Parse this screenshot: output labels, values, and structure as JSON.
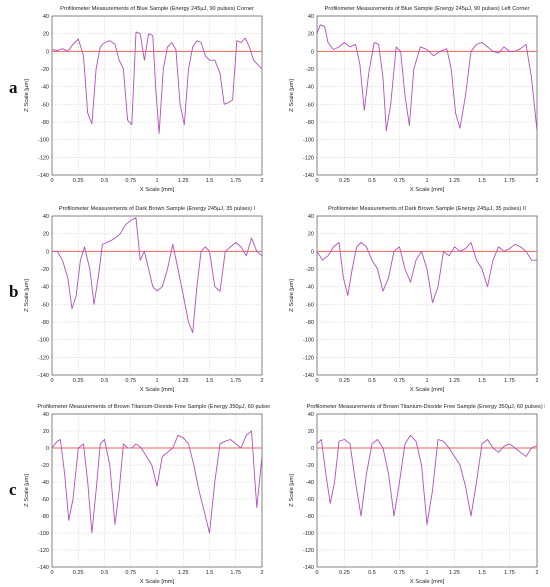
{
  "figure": {
    "row_labels": [
      "a",
      "b",
      "c"
    ]
  },
  "colors": {
    "profile_line": "#b24fbd",
    "zero_line": "#e8645a",
    "grid": "#c9c9c9",
    "axis": "#555555",
    "text": "#222222"
  },
  "chart_data": [
    {
      "type": "line",
      "title": "Profilometer Measurements of Blue Sample (Energy 245µJ, 90 pulses) Corner",
      "xlabel": "X Scale [mm]",
      "ylabel": "Z Scale [µm]",
      "xlim": [
        0,
        2
      ],
      "ylim": [
        -140,
        40
      ],
      "xticks": [
        0,
        0.25,
        0.5,
        0.75,
        1,
        1.25,
        1.5,
        1.75,
        2
      ],
      "xtick_labels": [
        "0",
        "0.25",
        "0.5",
        "0.75",
        "1",
        "1.25",
        "1.5",
        "1.75",
        "2"
      ],
      "yticks": [
        40,
        20,
        0,
        -20,
        -40,
        -60,
        -80,
        -100,
        -120,
        -140
      ],
      "ytick_labels": [
        "40",
        "20",
        "0",
        "-20",
        "-40",
        "-60",
        "-80",
        "-100",
        "-120",
        "-140"
      ],
      "grid": true,
      "reference_line_y": 0,
      "series": [
        {
          "x": [
            0,
            0.05,
            0.1,
            0.15,
            0.2,
            0.25,
            0.3,
            0.34,
            0.38,
            0.42,
            0.46,
            0.5,
            0.55,
            0.6,
            0.64,
            0.68,
            0.72,
            0.76,
            0.8,
            0.84,
            0.88,
            0.92,
            0.96,
            0.99,
            1.02,
            1.06,
            1.1,
            1.14,
            1.18,
            1.22,
            1.26,
            1.3,
            1.34,
            1.38,
            1.42,
            1.46,
            1.5,
            1.55,
            1.6,
            1.64,
            1.68,
            1.72,
            1.76,
            1.8,
            1.84,
            1.88,
            1.92,
            1.96,
            2
          ],
          "y": [
            2,
            1,
            3,
            0,
            8,
            14,
            -5,
            -70,
            -82,
            -20,
            5,
            10,
            12,
            8,
            -10,
            -20,
            -78,
            -83,
            22,
            20,
            -10,
            20,
            18,
            -45,
            -93,
            -20,
            5,
            10,
            2,
            -60,
            -83,
            -20,
            5,
            12,
            10,
            -5,
            -10,
            -10,
            -25,
            -60,
            -58,
            -55,
            12,
            10,
            15,
            5,
            -10,
            -15,
            -20
          ]
        }
      ]
    },
    {
      "type": "line",
      "title": "Profilometer Measurements of Blue Sample (Energy 245µJ, 90 pulses) Left Corner",
      "xlabel": "X Scale [mm]",
      "ylabel": "Z Scale [µm]",
      "xlim": [
        0,
        2
      ],
      "ylim": [
        -140,
        40
      ],
      "xticks": [
        0,
        0.25,
        0.5,
        0.75,
        1,
        1.25,
        1.5,
        1.75,
        2
      ],
      "xtick_labels": [
        "0",
        "0.25",
        "0.5",
        "0.75",
        "1",
        "1.25",
        "1.5",
        "1.75",
        "2"
      ],
      "yticks": [
        40,
        20,
        0,
        -20,
        -40,
        -60,
        -80,
        -100,
        -120,
        -140
      ],
      "ytick_labels": [
        "40",
        "20",
        "0",
        "-20",
        "-40",
        "-60",
        "-80",
        "-100",
        "-120",
        "-140"
      ],
      "grid": true,
      "reference_line_y": 0,
      "series": [
        {
          "x": [
            0,
            0.03,
            0.07,
            0.1,
            0.15,
            0.2,
            0.25,
            0.3,
            0.35,
            0.39,
            0.43,
            0.47,
            0.52,
            0.56,
            0.6,
            0.63,
            0.67,
            0.72,
            0.76,
            0.8,
            0.84,
            0.88,
            0.94,
            1,
            1.06,
            1.12,
            1.18,
            1.22,
            1.26,
            1.3,
            1.35,
            1.4,
            1.45,
            1.5,
            1.55,
            1.6,
            1.65,
            1.7,
            1.75,
            1.8,
            1.85,
            1.9,
            1.95,
            2
          ],
          "y": [
            20,
            30,
            28,
            10,
            2,
            5,
            10,
            5,
            8,
            -15,
            -67,
            -25,
            10,
            8,
            -30,
            -90,
            -60,
            5,
            0,
            -50,
            -84,
            -20,
            5,
            2,
            -5,
            0,
            3,
            -20,
            -70,
            -87,
            -50,
            0,
            8,
            10,
            5,
            0,
            -2,
            5,
            0,
            0,
            3,
            8,
            -30,
            -90
          ]
        }
      ]
    },
    {
      "type": "line",
      "title": "Profilometer Measurements of Dark Brown Sample (Energy 245µJ, 35 pulses) I",
      "xlabel": "X Scale [mm]",
      "ylabel": "Z Scale [µm]",
      "xlim": [
        0,
        2
      ],
      "ylim": [
        -140,
        40
      ],
      "xticks": [
        0,
        0.25,
        0.5,
        0.75,
        1,
        1.25,
        1.5,
        1.75,
        2
      ],
      "xtick_labels": [
        "0",
        "0.25",
        "0.5",
        "0.75",
        "1",
        "1.25",
        "1.5",
        "1.75",
        "2"
      ],
      "yticks": [
        40,
        20,
        0,
        -20,
        -40,
        -60,
        -80,
        -100,
        -120,
        -140
      ],
      "ytick_labels": [
        "40",
        "20",
        "0",
        "-20",
        "-40",
        "-60",
        "-80",
        "-100",
        "-120",
        "-140"
      ],
      "grid": true,
      "reference_line_y": 0,
      "series": [
        {
          "x": [
            0,
            0.05,
            0.1,
            0.15,
            0.19,
            0.23,
            0.27,
            0.31,
            0.36,
            0.4,
            0.44,
            0.48,
            0.52,
            0.56,
            0.6,
            0.65,
            0.7,
            0.75,
            0.8,
            0.84,
            0.88,
            0.92,
            0.96,
            1,
            1.05,
            1.1,
            1.15,
            1.2,
            1.25,
            1.3,
            1.34,
            1.38,
            1.42,
            1.46,
            1.5,
            1.55,
            1.6,
            1.65,
            1.7,
            1.75,
            1.8,
            1.85,
            1.9,
            1.95,
            2
          ],
          "y": [
            0,
            0,
            -10,
            -30,
            -65,
            -50,
            -10,
            5,
            -20,
            -60,
            -30,
            8,
            10,
            12,
            15,
            20,
            30,
            35,
            38,
            -10,
            0,
            -20,
            -40,
            -45,
            -40,
            -20,
            8,
            -20,
            -50,
            -80,
            -92,
            -40,
            0,
            5,
            0,
            -40,
            -45,
            0,
            5,
            10,
            5,
            -5,
            15,
            0,
            -5
          ]
        }
      ]
    },
    {
      "type": "line",
      "title": "Profilometer Measurements of Dark Brown Sample (Energy 245µJ, 35 pulses) II",
      "xlabel": "X Scale [mm]",
      "ylabel": "Z Scale [µm]",
      "xlim": [
        0,
        2
      ],
      "ylim": [
        -140,
        40
      ],
      "xticks": [
        0,
        0.25,
        0.5,
        0.75,
        1,
        1.25,
        1.5,
        1.75,
        2
      ],
      "xtick_labels": [
        "0",
        "0.25",
        "0.5",
        "0.75",
        "1",
        "1.25",
        "1.5",
        "1.75",
        "2"
      ],
      "yticks": [
        40,
        20,
        0,
        -20,
        -40,
        -60,
        -80,
        -100,
        -120,
        -140
      ],
      "ytick_labels": [
        "40",
        "20",
        "0",
        "-20",
        "-40",
        "-60",
        "-80",
        "-100",
        "-120",
        "-140"
      ],
      "grid": true,
      "reference_line_y": 0,
      "series": [
        {
          "x": [
            0,
            0.05,
            0.1,
            0.15,
            0.2,
            0.24,
            0.28,
            0.32,
            0.36,
            0.4,
            0.45,
            0.5,
            0.55,
            0.6,
            0.65,
            0.7,
            0.75,
            0.8,
            0.85,
            0.9,
            0.95,
            1,
            1.05,
            1.1,
            1.15,
            1.2,
            1.25,
            1.3,
            1.35,
            1.4,
            1.45,
            1.5,
            1.55,
            1.6,
            1.65,
            1.7,
            1.75,
            1.8,
            1.85,
            1.9,
            1.95,
            2
          ],
          "y": [
            0,
            -10,
            -5,
            5,
            10,
            -30,
            -50,
            -20,
            5,
            10,
            5,
            -10,
            -20,
            -45,
            -30,
            0,
            5,
            -20,
            -35,
            -10,
            0,
            -20,
            -58,
            -40,
            0,
            -5,
            5,
            0,
            3,
            10,
            -10,
            -20,
            -40,
            -10,
            5,
            0,
            3,
            8,
            5,
            0,
            -10,
            -10
          ]
        }
      ]
    },
    {
      "type": "line",
      "title": "Profilometer Measurements of Brown Titanium-Dioxide Free Sample (Energy 350µJ, 60 pulses) I",
      "xlabel": "X Scale [mm]",
      "ylabel": "Z Scale [µm]",
      "xlim": [
        0,
        2
      ],
      "ylim": [
        -140,
        40
      ],
      "xticks": [
        0,
        0.25,
        0.5,
        0.75,
        1,
        1.25,
        1.5,
        1.75,
        2
      ],
      "xtick_labels": [
        "0",
        "0.25",
        "0.5",
        "0.75",
        "1",
        "1.25",
        "1.5",
        "1.75",
        "2"
      ],
      "yticks": [
        40,
        20,
        0,
        -20,
        -40,
        -60,
        -80,
        -100,
        -120,
        -140
      ],
      "ytick_labels": [
        "40",
        "20",
        "0",
        "-20",
        "-40",
        "-60",
        "-80",
        "-100",
        "-120",
        "-140"
      ],
      "grid": true,
      "reference_line_y": 0,
      "series": [
        {
          "x": [
            0,
            0.05,
            0.08,
            0.12,
            0.16,
            0.2,
            0.25,
            0.3,
            0.34,
            0.38,
            0.42,
            0.46,
            0.5,
            0.55,
            0.6,
            0.64,
            0.68,
            0.72,
            0.76,
            0.8,
            0.85,
            0.9,
            0.95,
            1,
            1.05,
            1.1,
            1.15,
            1.2,
            1.25,
            1.3,
            1.35,
            1.4,
            1.45,
            1.5,
            1.55,
            1.6,
            1.65,
            1.7,
            1.75,
            1.8,
            1.85,
            1.9,
            1.95,
            2
          ],
          "y": [
            0,
            8,
            10,
            -30,
            -85,
            -60,
            0,
            5,
            -40,
            -100,
            -50,
            5,
            10,
            -20,
            -90,
            -50,
            5,
            0,
            0,
            5,
            0,
            -10,
            -20,
            -45,
            -10,
            -5,
            0,
            15,
            12,
            5,
            -20,
            -50,
            -75,
            -100,
            -40,
            5,
            8,
            10,
            5,
            0,
            15,
            20,
            -70,
            -10
          ]
        }
      ]
    },
    {
      "type": "line",
      "title": "Profilometer Measurements of Brown Titanium-Dioxide Free Sample (Energy 350µJ, 60 pulses) II",
      "xlabel": "X Scale [mm]",
      "ylabel": "Z Scale [µm]",
      "xlim": [
        0,
        2
      ],
      "ylim": [
        -140,
        40
      ],
      "xticks": [
        0,
        0.25,
        0.5,
        0.75,
        1,
        1.25,
        1.5,
        1.75,
        2
      ],
      "xtick_labels": [
        "0",
        "0.25",
        "0.5",
        "0.75",
        "1",
        "1.25",
        "1.5",
        "1.75",
        "2"
      ],
      "yticks": [
        40,
        20,
        0,
        -20,
        -40,
        -60,
        -80,
        -100,
        -120,
        -140
      ],
      "ytick_labels": [
        "40",
        "20",
        "0",
        "-20",
        "-40",
        "-60",
        "-80",
        "-100",
        "-120",
        "-140"
      ],
      "grid": true,
      "reference_line_y": 0,
      "series": [
        {
          "x": [
            0,
            0.04,
            0.08,
            0.12,
            0.16,
            0.2,
            0.25,
            0.3,
            0.35,
            0.4,
            0.45,
            0.5,
            0.55,
            0.6,
            0.65,
            0.7,
            0.75,
            0.8,
            0.85,
            0.9,
            0.95,
            1,
            1.05,
            1.1,
            1.15,
            1.2,
            1.25,
            1.3,
            1.35,
            1.4,
            1.45,
            1.5,
            1.55,
            1.6,
            1.65,
            1.7,
            1.75,
            1.8,
            1.85,
            1.9,
            1.95,
            2
          ],
          "y": [
            5,
            10,
            -30,
            -65,
            -40,
            8,
            10,
            5,
            -40,
            -80,
            -30,
            5,
            10,
            0,
            -30,
            -80,
            -40,
            5,
            15,
            8,
            -20,
            -90,
            -50,
            10,
            8,
            0,
            -10,
            -20,
            -45,
            -80,
            -40,
            5,
            10,
            0,
            -5,
            2,
            5,
            0,
            -5,
            -10,
            0,
            3
          ]
        }
      ]
    }
  ]
}
